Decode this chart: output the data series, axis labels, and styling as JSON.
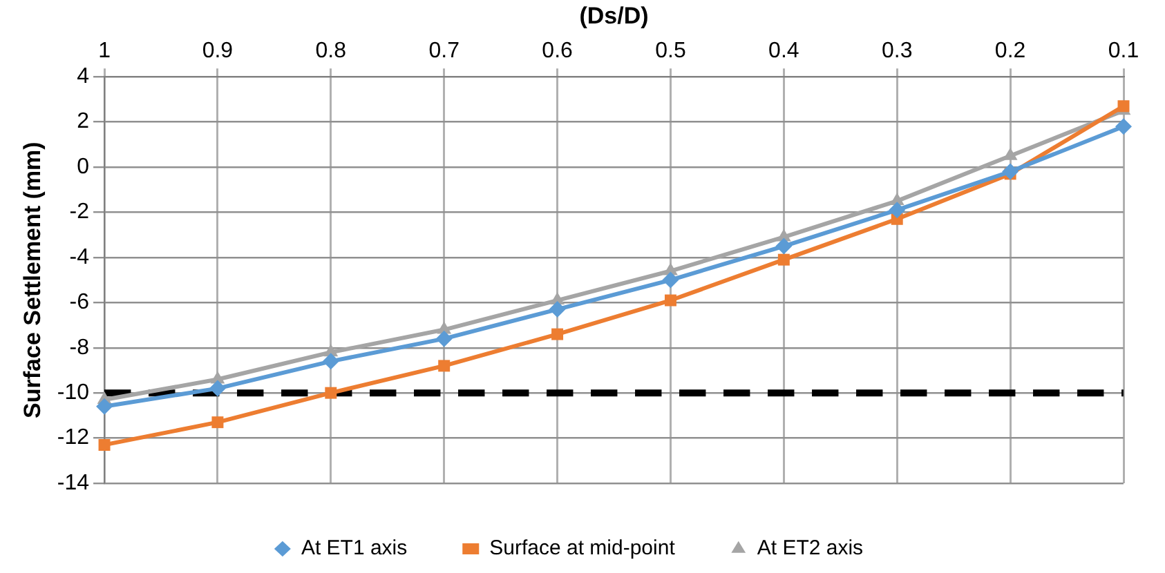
{
  "chart_data": {
    "type": "line",
    "xlabel": "(Ds/D)",
    "ylabel": "Surface Settlement (mm)",
    "categories": [
      "1",
      "0.9",
      "0.8",
      "0.7",
      "0.6",
      "0.5",
      "0.4",
      "0.3",
      "0.2",
      "0.1"
    ],
    "series": [
      {
        "name": "At ET1 axis",
        "color": "#5b9bd5",
        "marker": "diamond",
        "values": [
          -10.6,
          -9.8,
          -8.6,
          -7.6,
          -6.3,
          -5.0,
          -3.5,
          -1.9,
          -0.2,
          1.8
        ]
      },
      {
        "name": "Surface at mid-point",
        "color": "#ed7d31",
        "marker": "square",
        "values": [
          -12.3,
          -11.3,
          -10.0,
          -8.8,
          -7.4,
          -5.9,
          -4.1,
          -2.3,
          -0.3,
          2.7
        ]
      },
      {
        "name": "At ET2 axis",
        "color": "#a5a5a5",
        "marker": "triangle",
        "values": [
          -10.3,
          -9.4,
          -8.2,
          -7.2,
          -5.9,
          -4.6,
          -3.1,
          -1.5,
          0.5,
          2.5
        ]
      }
    ],
    "ylim": [
      -14,
      4
    ],
    "yticks": [
      -14,
      -12,
      -10,
      -8,
      -6,
      -4,
      -2,
      0,
      2,
      4
    ],
    "ref_lines": [
      {
        "axis": "y",
        "value": -10,
        "color": "#000000",
        "line_style": "dashed"
      }
    ],
    "grid": true,
    "legend": "bottom",
    "line_style": "solid"
  }
}
